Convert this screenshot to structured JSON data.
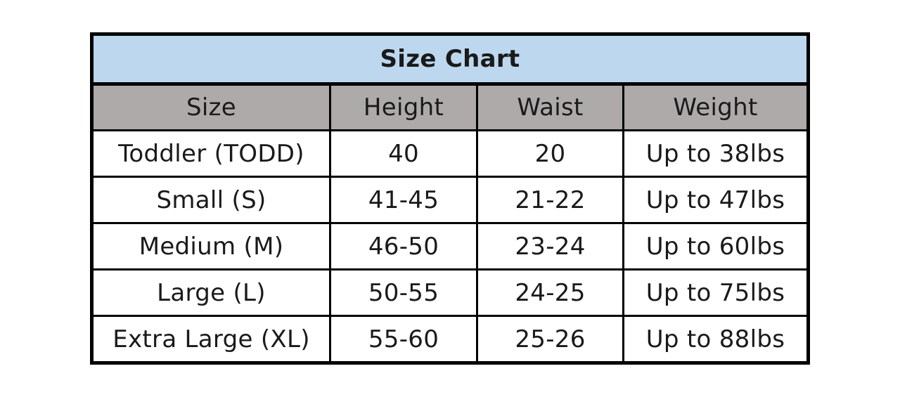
{
  "title": "Size Chart",
  "colors": {
    "title_bg": "#bdd7ee",
    "header_bg": "#aeaaaa"
  },
  "columns": [
    "Size",
    "Height",
    "Waist",
    "Weight"
  ],
  "rows": [
    [
      "Toddler (TODD)",
      "40",
      "20",
      "Up to 38lbs"
    ],
    [
      "Small (S)",
      "41-45",
      "21-22",
      "Up to 47lbs"
    ],
    [
      "Medium (M)",
      "46-50",
      "23-24",
      "Up to 60lbs"
    ],
    [
      "Large (L)",
      "50-55",
      "24-25",
      "Up to 75lbs"
    ],
    [
      "Extra Large (XL)",
      "55-60",
      "25-26",
      "Up to 88lbs"
    ]
  ]
}
